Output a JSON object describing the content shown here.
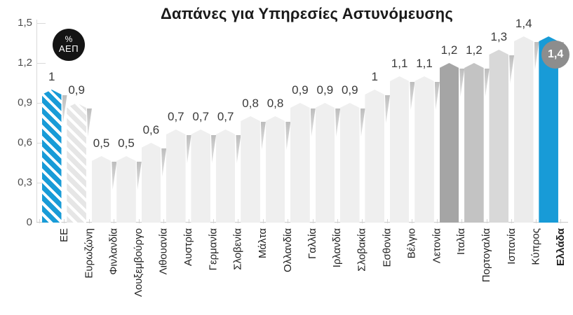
{
  "title": "Δαπάνες για Υπηρεσίες Αστυνόμευσης",
  "unit_badge": {
    "line1": "%",
    "line2": "ΑΕΠ"
  },
  "colors": {
    "accent_blue": "#189bd7",
    "bar_light": "#efefef",
    "bar_gray_dark": "#a5a5a5",
    "bar_gray_mid": "#c3c3c3",
    "bar_gray_soft": "#d8d8d8",
    "bar_gray_pale": "#ececec",
    "hatch_gray": "#e6e6e6",
    "badge_black": "#141414",
    "badge_gray": "#8d8d8d",
    "axis_line": "#dadada"
  },
  "chart_data": {
    "type": "bar",
    "title": "Δαπάνες για Υπηρεσίες Αστυνόμευσης",
    "unit": "% ΑΕΠ",
    "xlabel": "",
    "ylabel": "",
    "ylim": [
      0,
      1.5
    ],
    "y_ticks": [
      "0",
      "0,3",
      "0,6",
      "0,9",
      "1,2",
      "1,5"
    ],
    "grid": "tick-stubs-only",
    "legend_position": "none",
    "categories": [
      "ΕΕ",
      "Ευρωζώνη",
      "Φινλανδία",
      "Λουξεμβούργο",
      "Λιθουανία",
      "Αυστρία",
      "Γερμανία",
      "Σλοβενία",
      "Μάλτα",
      "Ολλανδία",
      "Γαλλία",
      "Ιρλανδία",
      "Σλοβακία",
      "Εσθονία",
      "Βέλγιο",
      "Λετονία",
      "Ιταλία",
      "Πορτογαλία",
      "Ισπανία",
      "Κύπρος",
      "Ελλάδα"
    ],
    "values": [
      1,
      0.9,
      0.5,
      0.5,
      0.6,
      0.7,
      0.7,
      0.7,
      0.8,
      0.8,
      0.9,
      0.9,
      0.9,
      1,
      1.1,
      1.1,
      1.2,
      1.2,
      1.3,
      1.4,
      1.4
    ],
    "value_labels": [
      "1",
      "0,9",
      "0,5",
      "0,5",
      "0,6",
      "0,7",
      "0,7",
      "0,7",
      "0,8",
      "0,8",
      "0,9",
      "0,9",
      "0,9",
      "1",
      "1,1",
      "1,1",
      "1,2",
      "1,2",
      "1,3",
      "1,4",
      ""
    ],
    "bar_styles": [
      {
        "color": "accent_blue",
        "hatch": true
      },
      {
        "color": "hatch_gray",
        "hatch": true
      },
      {
        "color": "bar_light"
      },
      {
        "color": "bar_light"
      },
      {
        "color": "bar_light"
      },
      {
        "color": "bar_light"
      },
      {
        "color": "bar_light"
      },
      {
        "color": "bar_light"
      },
      {
        "color": "bar_light"
      },
      {
        "color": "bar_light"
      },
      {
        "color": "bar_light"
      },
      {
        "color": "bar_light"
      },
      {
        "color": "bar_light"
      },
      {
        "color": "bar_light"
      },
      {
        "color": "bar_light"
      },
      {
        "color": "bar_light"
      },
      {
        "color": "bar_gray_dark"
      },
      {
        "color": "bar_gray_mid"
      },
      {
        "color": "bar_gray_soft"
      },
      {
        "color": "bar_gray_pale"
      },
      {
        "color": "accent_blue",
        "bold": true,
        "badge": "1,4"
      }
    ]
  }
}
